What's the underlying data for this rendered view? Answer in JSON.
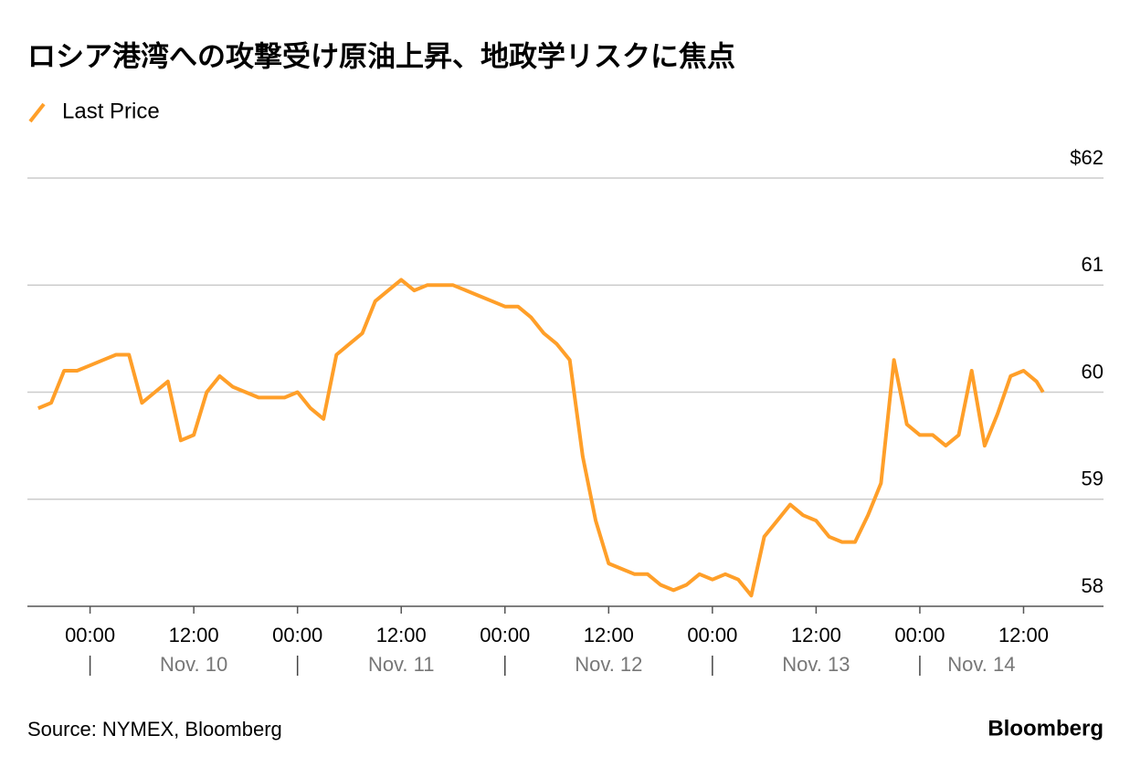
{
  "chart_data": {
    "type": "line",
    "title": "ロシア港湾への攻撃受け原油上昇、地政学リスクに焦点",
    "source": "Source: NYMEX, Bloomberg",
    "brand": "Bloomberg",
    "x": [
      "Nov. 9 18:00",
      "Nov. 9 19:30",
      "Nov. 9 21:00",
      "Nov. 9 22:30",
      "Nov. 10 00:00",
      "Nov. 10 01:30",
      "Nov. 10 03:00",
      "Nov. 10 04:30",
      "Nov. 10 06:00",
      "Nov. 10 07:30",
      "Nov. 10 09:00",
      "Nov. 10 10:30",
      "Nov. 10 12:00",
      "Nov. 10 13:30",
      "Nov. 10 15:00",
      "Nov. 10 16:30",
      "Nov. 10 18:00",
      "Nov. 10 19:30",
      "Nov. 10 21:00",
      "Nov. 10 22:30",
      "Nov. 11 00:00",
      "Nov. 11 01:30",
      "Nov. 11 03:00",
      "Nov. 11 04:30",
      "Nov. 11 06:00",
      "Nov. 11 07:30",
      "Nov. 11 09:00",
      "Nov. 11 10:30",
      "Nov. 11 12:00",
      "Nov. 11 13:30",
      "Nov. 11 15:00",
      "Nov. 11 16:30",
      "Nov. 11 18:00",
      "Nov. 11 19:30",
      "Nov. 11 21:00",
      "Nov. 11 22:30",
      "Nov. 12 00:00",
      "Nov. 12 01:30",
      "Nov. 12 03:00",
      "Nov. 12 04:30",
      "Nov. 12 06:00",
      "Nov. 12 07:30",
      "Nov. 12 09:00",
      "Nov. 12 10:30",
      "Nov. 12 12:00",
      "Nov. 12 13:30",
      "Nov. 12 15:00",
      "Nov. 12 16:30",
      "Nov. 12 18:00",
      "Nov. 12 19:30",
      "Nov. 12 21:00",
      "Nov. 12 22:30",
      "Nov. 13 00:00",
      "Nov. 13 01:30",
      "Nov. 13 03:00",
      "Nov. 13 04:30",
      "Nov. 13 06:00",
      "Nov. 13 07:30",
      "Nov. 13 09:00",
      "Nov. 13 10:30",
      "Nov. 13 12:00",
      "Nov. 13 13:30",
      "Nov. 13 15:00",
      "Nov. 13 16:30",
      "Nov. 13 18:00",
      "Nov. 13 19:30",
      "Nov. 13 21:00",
      "Nov. 13 22:30",
      "Nov. 14 00:00",
      "Nov. 14 01:30",
      "Nov. 14 03:00",
      "Nov. 14 04:30",
      "Nov. 14 06:00",
      "Nov. 14 07:30",
      "Nov. 14 09:00",
      "Nov. 14 10:30",
      "Nov. 14 12:00",
      "Nov. 14 13:30",
      "Nov. 14 14:15"
    ],
    "series": [
      {
        "name": "Last Price",
        "color": "#ff9f29",
        "values": [
          59.85,
          59.9,
          60.2,
          60.2,
          60.25,
          60.3,
          60.35,
          60.35,
          59.9,
          60.0,
          60.1,
          59.55,
          59.6,
          60.0,
          60.15,
          60.05,
          60.0,
          59.95,
          59.95,
          59.95,
          60.0,
          59.85,
          59.75,
          60.35,
          60.45,
          60.55,
          60.85,
          60.95,
          61.05,
          60.95,
          61.0,
          61.0,
          61.0,
          60.95,
          60.9,
          60.85,
          60.8,
          60.8,
          60.7,
          60.55,
          60.45,
          60.3,
          59.4,
          58.8,
          58.4,
          58.35,
          58.3,
          58.3,
          58.2,
          58.15,
          58.2,
          58.3,
          58.25,
          58.3,
          58.25,
          58.1,
          58.65,
          58.8,
          58.95,
          58.85,
          58.8,
          58.65,
          58.6,
          58.6,
          58.85,
          59.15,
          60.3,
          59.7,
          59.6,
          59.6,
          59.5,
          59.6,
          60.2,
          59.5,
          59.8,
          60.15,
          60.2,
          60.1,
          60.0
        ]
      }
    ],
    "xlim": [
      "Nov. 9 16:45",
      "Nov. 14 21:15"
    ],
    "xticks": [
      {
        "value": "Nov. 10 00:00",
        "label": "00:00"
      },
      {
        "value": "Nov. 10 12:00",
        "label": "12:00"
      },
      {
        "value": "Nov. 11 00:00",
        "label": "00:00"
      },
      {
        "value": "Nov. 11 12:00",
        "label": "12:00"
      },
      {
        "value": "Nov. 12 00:00",
        "label": "00:00"
      },
      {
        "value": "Nov. 12 12:00",
        "label": "12:00"
      },
      {
        "value": "Nov. 13 00:00",
        "label": "00:00"
      },
      {
        "value": "Nov. 13 12:00",
        "label": "12:00"
      },
      {
        "value": "Nov. 14 00:00",
        "label": "00:00"
      },
      {
        "value": "Nov. 14 12:00",
        "label": "12:00"
      }
    ],
    "day_labels": [
      "Nov. 10",
      "Nov. 11",
      "Nov. 12",
      "Nov. 13",
      "Nov. 14"
    ],
    "ylim": [
      58,
      62
    ],
    "yticks": [
      58,
      59,
      60,
      61,
      {
        "value": 62,
        "label": "$62"
      }
    ],
    "grid": true
  }
}
